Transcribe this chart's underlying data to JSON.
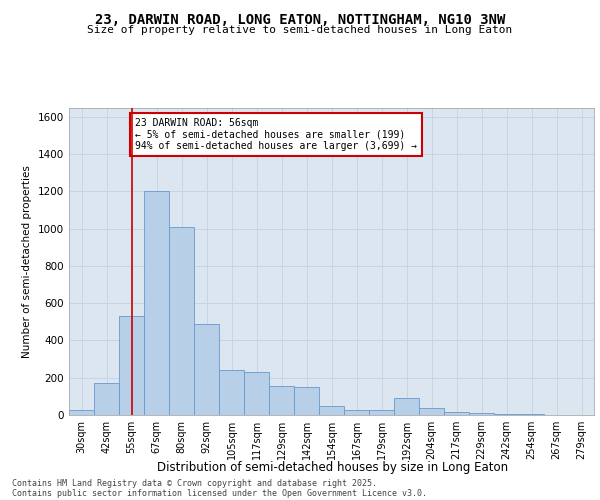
{
  "title_line1": "23, DARWIN ROAD, LONG EATON, NOTTINGHAM, NG10 3NW",
  "title_line2": "Size of property relative to semi-detached houses in Long Eaton",
  "xlabel": "Distribution of semi-detached houses by size in Long Eaton",
  "ylabel": "Number of semi-detached properties",
  "categories": [
    "30sqm",
    "42sqm",
    "55sqm",
    "67sqm",
    "80sqm",
    "92sqm",
    "105sqm",
    "117sqm",
    "129sqm",
    "142sqm",
    "154sqm",
    "167sqm",
    "179sqm",
    "192sqm",
    "204sqm",
    "217sqm",
    "229sqm",
    "242sqm",
    "254sqm",
    "267sqm",
    "279sqm"
  ],
  "values": [
    25,
    170,
    530,
    1200,
    1010,
    490,
    240,
    230,
    155,
    150,
    50,
    25,
    25,
    90,
    40,
    15,
    10,
    5,
    5,
    2,
    2
  ],
  "bar_color": "#b8cfe8",
  "bar_edge_color": "#6699cc",
  "grid_color": "#c8d4e4",
  "background_color": "#dce6f0",
  "vline_color": "#cc0000",
  "vline_x": 2.0,
  "annotation_title": "23 DARWIN ROAD: 56sqm",
  "annotation_line1": "← 5% of semi-detached houses are smaller (199)",
  "annotation_line2": "94% of semi-detached houses are larger (3,699) →",
  "annotation_box_color": "#cc0000",
  "ylim": [
    0,
    1650
  ],
  "yticks": [
    0,
    200,
    400,
    600,
    800,
    1000,
    1200,
    1400,
    1600
  ],
  "footer_line1": "Contains HM Land Registry data © Crown copyright and database right 2025.",
  "footer_line2": "Contains public sector information licensed under the Open Government Licence v3.0."
}
